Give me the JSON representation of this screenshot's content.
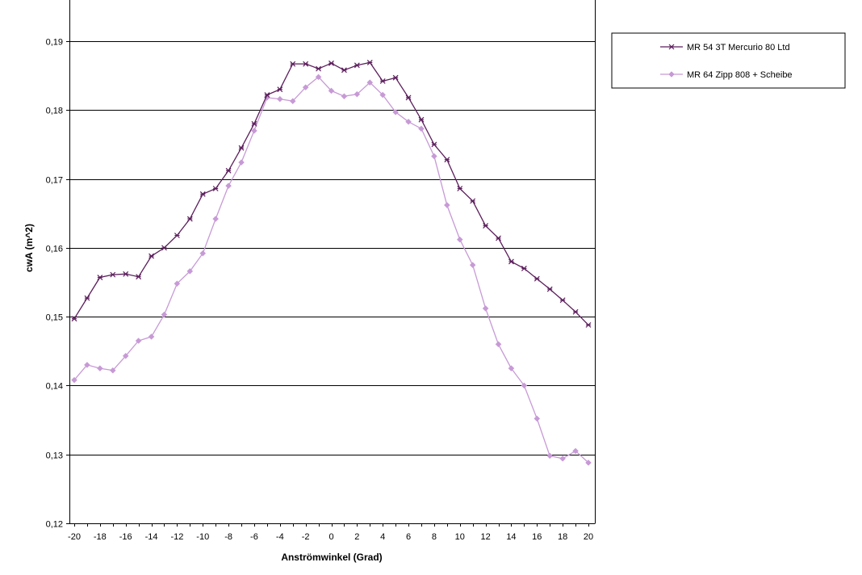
{
  "chart_data": {
    "type": "line",
    "xlabel": "Anströmwinkel (Grad)",
    "ylabel": "cwA (m^2)",
    "xlim": [
      -20,
      20
    ],
    "ylim": [
      0.12,
      0.19
    ],
    "x_ticks": [
      "-20",
      "-18",
      "-16",
      "-14",
      "-12",
      "-10",
      "-8",
      "-6",
      "-4",
      "-2",
      "0",
      "2",
      "4",
      "6",
      "8",
      "10",
      "12",
      "14",
      "16",
      "18",
      "20"
    ],
    "y_ticks": [
      "0,12",
      "0,13",
      "0,14",
      "0,15",
      "0,16",
      "0,17",
      "0,18",
      "0,19"
    ],
    "grid": "horizontal",
    "legend_position": "right",
    "x": [
      -20,
      -19,
      -18,
      -17,
      -16,
      -15,
      -14,
      -13,
      -12,
      -11,
      -10,
      -9,
      -8,
      -7,
      -6,
      -5,
      -4,
      -3,
      -2,
      -1,
      0,
      1,
      2,
      3,
      4,
      5,
      6,
      7,
      8,
      9,
      10,
      11,
      12,
      13,
      14,
      15,
      16,
      17,
      18,
      19,
      20
    ],
    "series": [
      {
        "name": "MR 54 3T Mercurio 80 Ltd",
        "color": "#5c1e5c",
        "marker": "star",
        "values": [
          0.1497,
          0.1527,
          0.1557,
          0.1561,
          0.1562,
          0.1558,
          0.1588,
          0.16,
          0.1618,
          0.1642,
          0.1678,
          0.1686,
          0.1712,
          0.1745,
          0.178,
          0.1822,
          0.183,
          0.1867,
          0.1867,
          0.186,
          0.1868,
          0.1858,
          0.1865,
          0.1869,
          0.1842,
          0.1847,
          0.1818,
          0.1786,
          0.175,
          0.1728,
          0.1686,
          0.1668,
          0.1632,
          0.1614,
          0.158,
          0.157,
          0.1555,
          0.154,
          0.1524,
          0.1507,
          0.1488
        ]
      },
      {
        "name": "MR 64 Zipp 808 + Scheibe",
        "color": "#c79ad6",
        "marker": "diamond",
        "values": [
          0.1408,
          0.143,
          0.1425,
          0.1422,
          0.1443,
          0.1465,
          0.1471,
          0.1503,
          0.1548,
          0.1566,
          0.1592,
          0.1642,
          0.169,
          0.1724,
          0.177,
          0.1818,
          0.1816,
          0.1813,
          0.1833,
          0.1848,
          0.1828,
          0.182,
          0.1823,
          0.184,
          0.1822,
          0.1797,
          0.1783,
          0.1773,
          0.1733,
          0.1662,
          0.1612,
          0.1575,
          0.1512,
          0.146,
          0.1425,
          0.14,
          0.1352,
          0.1298,
          0.1294,
          0.1305,
          0.1288
        ]
      }
    ]
  }
}
